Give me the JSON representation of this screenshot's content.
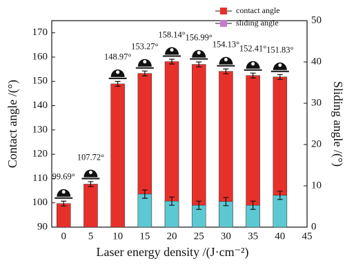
{
  "chart_data": {
    "type": "bar",
    "xlabel": "Laser energy density /(J·cm⁻²)",
    "ylabel": "Contact angle /(°)",
    "y2label": "Sliding angle /(°)",
    "x": [
      0,
      5,
      10,
      15,
      20,
      25,
      30,
      35,
      40
    ],
    "xlim": [
      -2.2,
      45
    ],
    "xticks": [
      0,
      5,
      10,
      15,
      20,
      25,
      30,
      35,
      40,
      45
    ],
    "ylim": [
      90,
      175
    ],
    "yticks": [
      90,
      100,
      110,
      120,
      130,
      140,
      150,
      160,
      170
    ],
    "y2lim": [
      0,
      50
    ],
    "y2ticks": [
      0,
      10,
      20,
      30,
      40,
      50
    ],
    "legend": "upper right",
    "series": [
      {
        "name": "contact angle",
        "color": "#e8302a",
        "legend_color": "#e8302a",
        "values": [
          99.69,
          107.72,
          148.97,
          153.27,
          158.14,
          156.99,
          154.13,
          152.41,
          151.83
        ],
        "value_labels": [
          "99.69°",
          "107.72°",
          "148.97°",
          "153.27°",
          "158.14°",
          "156.99°",
          "154.13°",
          "152.41°",
          "151.83°"
        ],
        "errors": [
          1,
          1,
          1,
          1,
          1,
          1,
          1,
          1,
          1
        ]
      },
      {
        "name": "sliding angle",
        "color": "#5cc8d2",
        "legend_color": "#c77bd0",
        "axis": "y2",
        "values": [
          null,
          null,
          null,
          8,
          6.3,
          5.3,
          6.2,
          5.3,
          7.7
        ],
        "errors": [
          null,
          null,
          null,
          1,
          1,
          1,
          1,
          1,
          1
        ]
      }
    ]
  }
}
